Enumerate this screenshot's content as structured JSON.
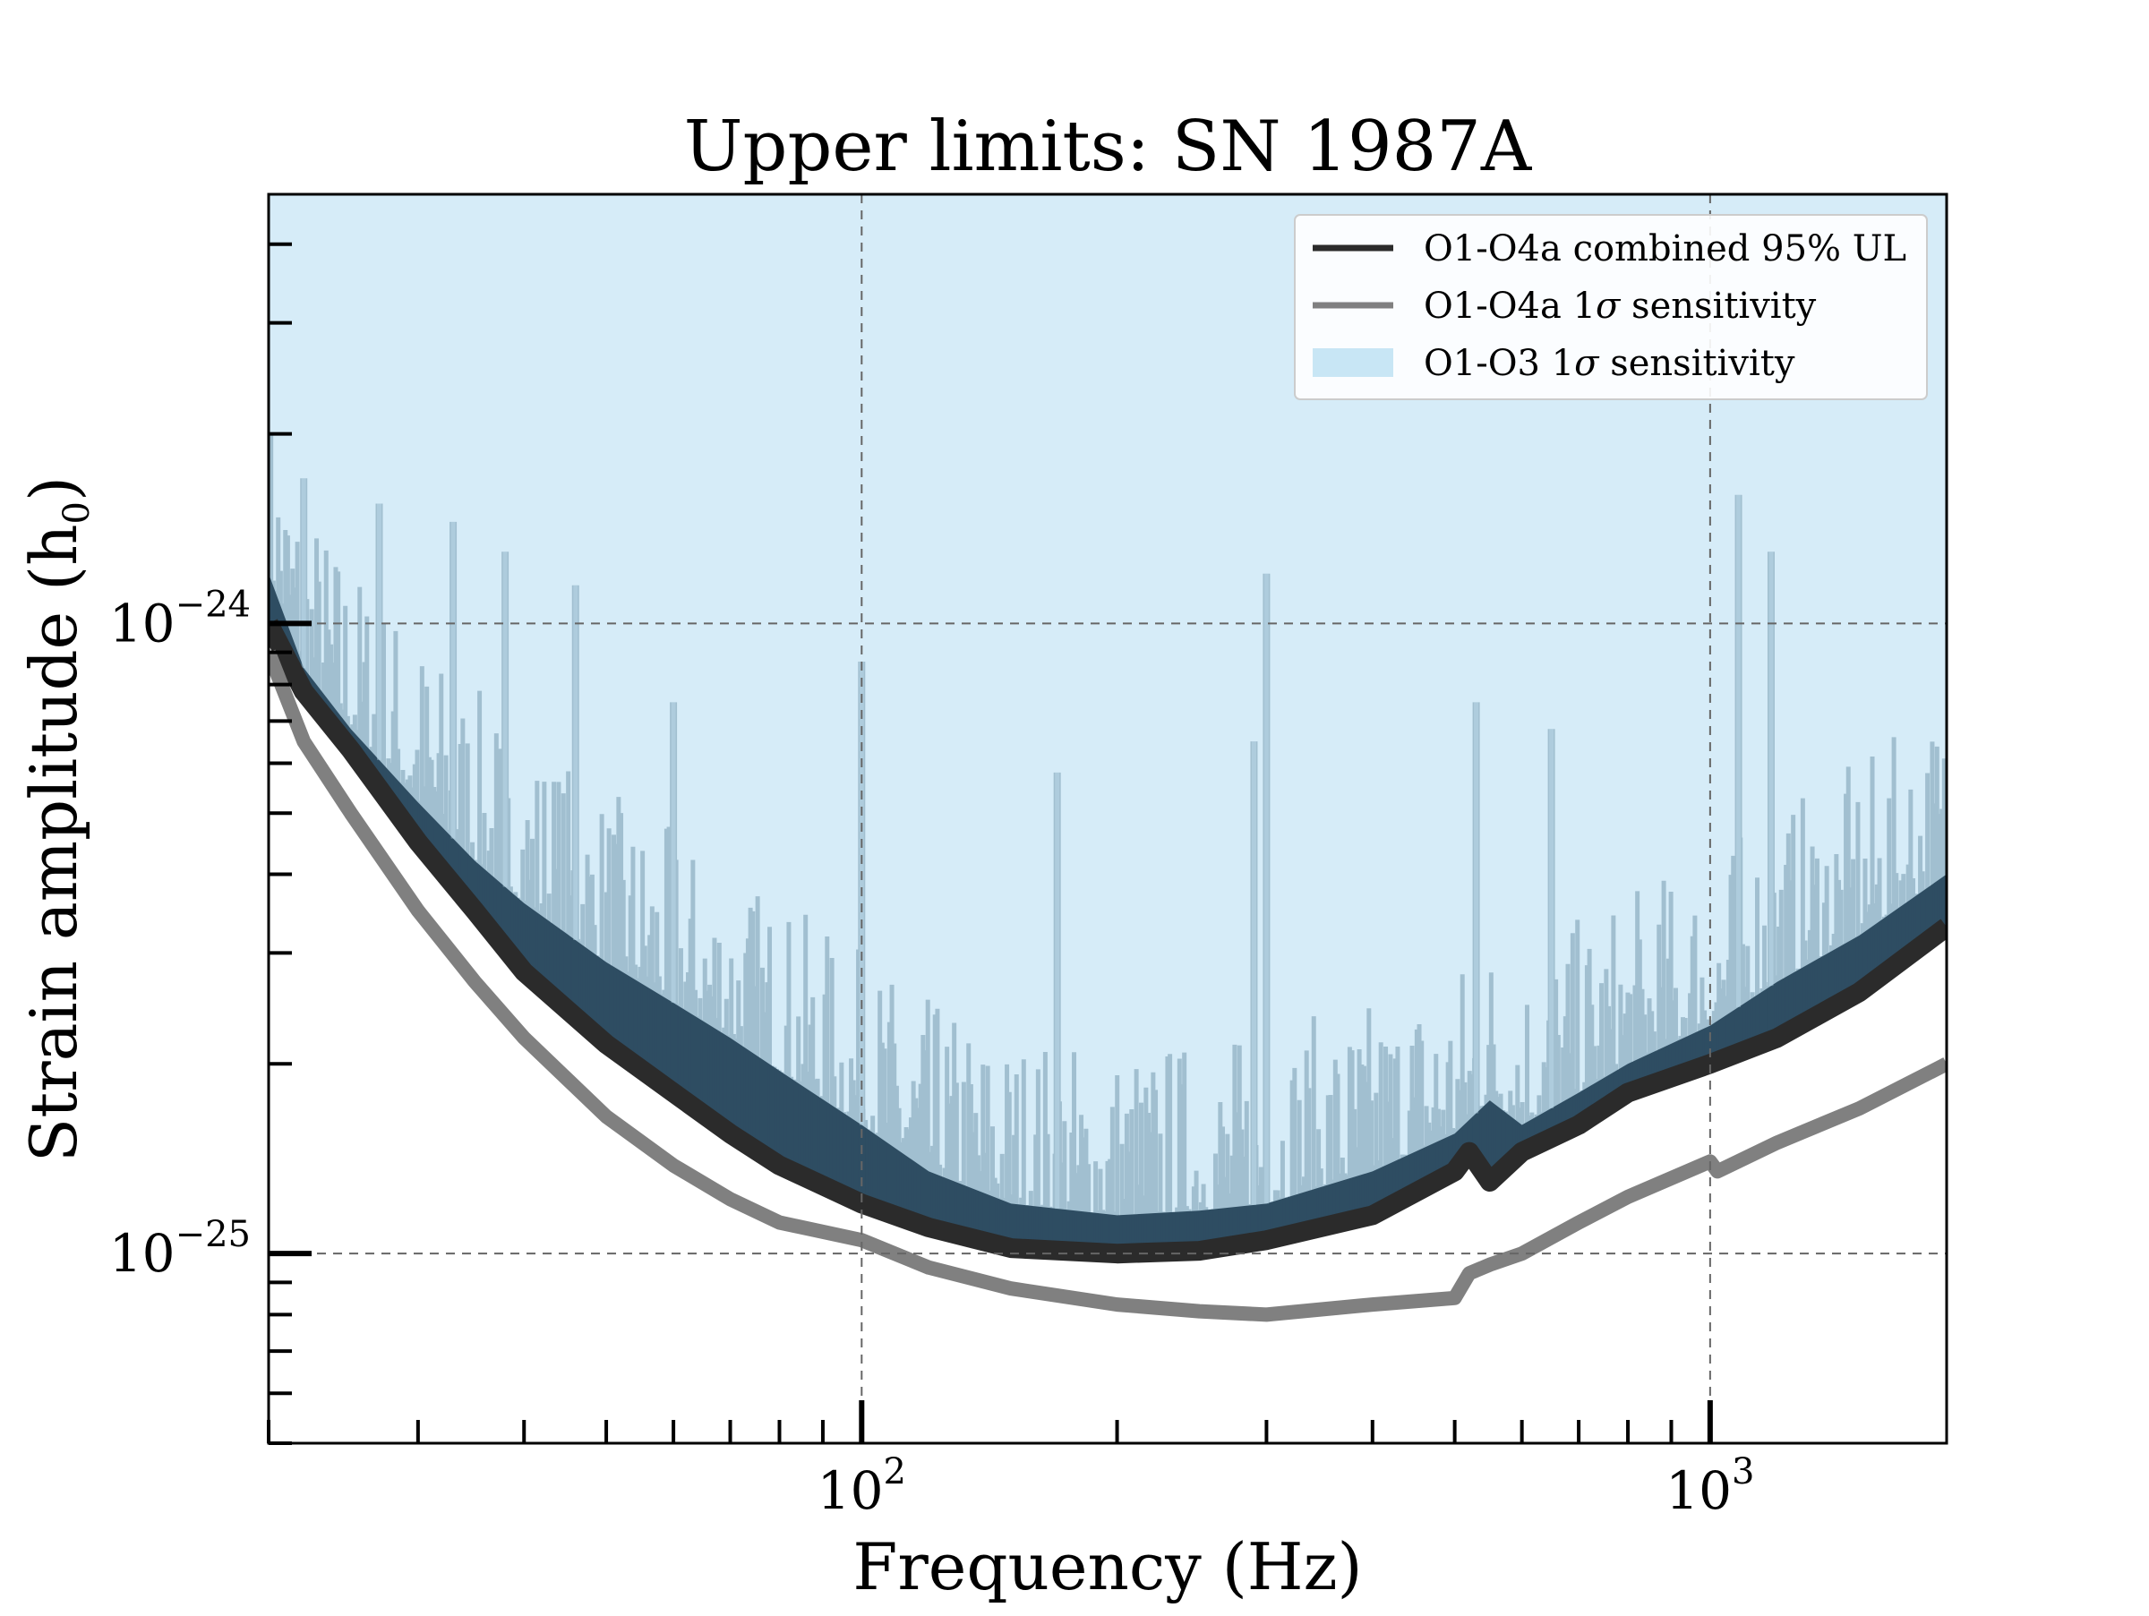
{
  "chart_data": {
    "type": "line",
    "title": "Upper limits: SN 1987A",
    "xlabel": "Frequency (Hz)",
    "ylabel": "Strain amplitude (h",
    "ylabel_sub": "0",
    "ylabel_close": ")",
    "xscale": "log",
    "yscale": "log",
    "xlim": [
      20,
      1900
    ],
    "ylim": [
      5e-26,
      4.8e-24
    ],
    "grid": true,
    "legend_position": "top-right",
    "x_ticks": [
      {
        "value": 100,
        "base": "10",
        "exp": "2"
      },
      {
        "value": 1000,
        "base": "10",
        "exp": "3"
      }
    ],
    "y_ticks": [
      {
        "value": 1e-25,
        "base": "10",
        "exp": "−25"
      },
      {
        "value": 1e-24,
        "base": "10",
        "exp": "−24"
      }
    ],
    "series": [
      {
        "name": "O1-O3 1σ sensitivity",
        "label_main": "O1-O3 1",
        "label_sym": "σ",
        "label_rest": " sensitivity",
        "style": "fill",
        "color": "#c8e6f5",
        "x": [
          20,
          22,
          25,
          30,
          35,
          40,
          50,
          60,
          70,
          80,
          100,
          120,
          150,
          200,
          250,
          300,
          400,
          500,
          550,
          600,
          700,
          800,
          1000,
          1200,
          1500,
          1900
        ],
        "y": [
          1.2e-24,
          8.5e-25,
          6.8e-25,
          5.2e-25,
          4.2e-25,
          3.6e-25,
          2.9e-25,
          2.5e-25,
          2.2e-25,
          1.95e-25,
          1.6e-25,
          1.35e-25,
          1.2e-25,
          1.15e-25,
          1.17e-25,
          1.2e-25,
          1.35e-25,
          1.55e-25,
          1.75e-25,
          1.6e-25,
          1.8e-25,
          2e-25,
          2.3e-25,
          2.7e-25,
          3.2e-25,
          4e-25
        ],
        "spikes": [
          [
            22,
            1.7e-24
          ],
          [
            27,
            1.55e-24
          ],
          [
            33,
            1.45e-24
          ],
          [
            38,
            1.3e-24
          ],
          [
            46,
            1.15e-24
          ],
          [
            60,
            7.5e-25
          ],
          [
            100,
            8.7e-25
          ],
          [
            170,
            5.8e-25
          ],
          [
            290,
            6.5e-25
          ],
          [
            300,
            1.2e-24
          ],
          [
            530,
            7.5e-25
          ],
          [
            650,
            6.8e-25
          ],
          [
            1080,
            1.6e-24
          ],
          [
            1180,
            1.3e-24
          ]
        ]
      },
      {
        "name": "O1-O4a combined 95% UL",
        "label_main": "O1-O4a combined 95% UL",
        "label_sym": "",
        "label_rest": "",
        "style": "line",
        "color": "#2b2b2b",
        "x": [
          20,
          22,
          25,
          30,
          35,
          40,
          50,
          60,
          70,
          80,
          100,
          120,
          150,
          200,
          250,
          300,
          400,
          500,
          520,
          550,
          600,
          700,
          800,
          1000,
          1200,
          1500,
          1900
        ],
        "y": [
          1e-24,
          7.8e-25,
          6.3e-25,
          4.5e-25,
          3.5e-25,
          2.8e-25,
          2.15e-25,
          1.8e-25,
          1.55e-25,
          1.38e-25,
          1.2e-25,
          1.1e-25,
          1.02e-25,
          1e-25,
          1.01e-25,
          1.05e-25,
          1.15e-25,
          1.35e-25,
          1.45e-25,
          1.3e-25,
          1.45e-25,
          1.6e-25,
          1.8e-25,
          2e-25,
          2.2e-25,
          2.6e-25,
          3.3e-25
        ]
      },
      {
        "name": "O1-O4a 1σ sensitivity",
        "label_main": "O1-O4a 1",
        "label_sym": "σ",
        "label_rest": " sensitivity",
        "style": "line",
        "color": "#808080",
        "x": [
          20,
          22,
          25,
          30,
          35,
          40,
          50,
          60,
          70,
          80,
          100,
          120,
          150,
          200,
          250,
          300,
          400,
          500,
          520,
          550,
          600,
          700,
          800,
          1000,
          1020,
          1200,
          1500,
          1900
        ],
        "y": [
          9e-25,
          6.5e-25,
          5e-25,
          3.5e-25,
          2.7e-25,
          2.2e-25,
          1.65e-25,
          1.38e-25,
          1.22e-25,
          1.12e-25,
          1.05e-25,
          9.5e-26,
          8.8e-26,
          8.3e-26,
          8.1e-26,
          8e-26,
          8.3e-26,
          8.5e-26,
          9.3e-26,
          9.6e-26,
          1e-25,
          1.12e-25,
          1.23e-25,
          1.4e-25,
          1.35e-25,
          1.5e-25,
          1.7e-25,
          2e-25
        ]
      }
    ]
  }
}
